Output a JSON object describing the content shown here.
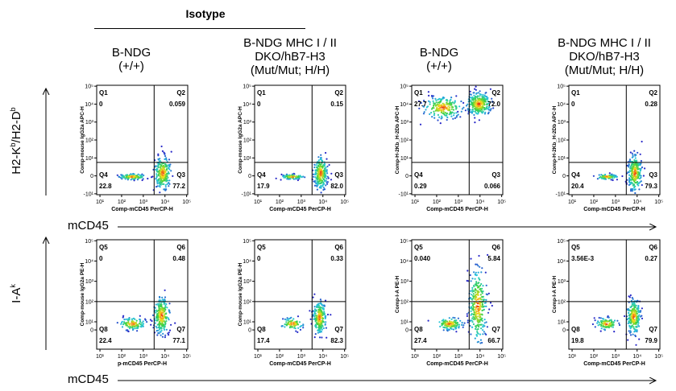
{
  "isotype_label": "Isotype",
  "column_headers": [
    {
      "lines": [
        "B-NDG",
        "(+/+)"
      ]
    },
    {
      "lines": [
        "B-NDG MHC I / II",
        "DKO/hB7-H3",
        "(Mut/Mut; H/H)"
      ]
    },
    {
      "lines": [
        "B-NDG",
        "(+/+)"
      ]
    },
    {
      "lines": [
        "B-NDG MHC I / II",
        "DKO/hB7-H3",
        "(Mut/Mut; H/H)"
      ]
    }
  ],
  "row_labels": {
    "top": {
      "base1": "H2-K",
      "sup1": "b",
      "mid": "/H2-D",
      "sup2": "b"
    },
    "bottom": {
      "base": "I-A",
      "sup": "k"
    }
  },
  "x_axis_title": "mCD45",
  "chart_data": [
    {
      "type": "scatter",
      "row": 0,
      "col": 0,
      "ylabel": "Comp-mouse IgG2a APC-H",
      "xlabel": "Comp-mCD45 PerCP-H",
      "x_ticks": [
        "10¹",
        "10²",
        "10³",
        "10⁴",
        "10⁵"
      ],
      "y_ticks": [
        "10⁵",
        "10⁴",
        "10³",
        "10²",
        "10¹",
        "0",
        "-10¹"
      ],
      "quadrants": {
        "tl": {
          "name": "Q1",
          "value": "0"
        },
        "tr": {
          "name": "Q2",
          "value": "0.059"
        },
        "bl": {
          "name": "Q4",
          "value": "22.8"
        },
        "br": {
          "name": "Q3",
          "value": "77.2"
        }
      },
      "populations": [
        {
          "x": 2.5,
          "y": -0.05,
          "sx": 0.3,
          "sy": 0.08,
          "n": 110
        },
        {
          "x": 3.9,
          "y": 0.15,
          "sx": 0.18,
          "sy": 0.45,
          "n": 230
        }
      ]
    },
    {
      "type": "scatter",
      "row": 0,
      "col": 1,
      "ylabel": "Comp-mouse IgG2a APC-H",
      "xlabel": "Comp-mCD45 PerCP-H",
      "x_ticks": [
        "10¹",
        "10²",
        "10³",
        "10⁴",
        "10⁵"
      ],
      "y_ticks": [
        "10⁵",
        "10⁴",
        "10³",
        "10²",
        "10¹",
        "0",
        "-10¹"
      ],
      "quadrants": {
        "tl": {
          "name": "Q1",
          "value": "0"
        },
        "tr": {
          "name": "Q2",
          "value": "0.15"
        },
        "bl": {
          "name": "Q4",
          "value": "17.9"
        },
        "br": {
          "name": "Q3",
          "value": "82.0"
        }
      },
      "populations": [
        {
          "x": 2.6,
          "y": -0.05,
          "sx": 0.25,
          "sy": 0.07,
          "n": 80
        },
        {
          "x": 3.9,
          "y": 0.15,
          "sx": 0.15,
          "sy": 0.45,
          "n": 230
        }
      ]
    },
    {
      "type": "scatter",
      "row": 0,
      "col": 2,
      "ylabel": "Comp-H-2Kb_H-2Db APC-H",
      "xlabel": "Comp-mCD45 PerCP-H",
      "x_ticks": [
        "10¹",
        "10²",
        "10³",
        "10⁴",
        "10⁵"
      ],
      "y_ticks": [
        "10⁵",
        "10⁴",
        "10³",
        "10²",
        "10¹",
        "0",
        "-10¹"
      ],
      "quadrants": {
        "tl": {
          "name": "Q1",
          "value": "27.7"
        },
        "tr": {
          "name": "Q2",
          "value": "72.0"
        },
        "bl": {
          "name": "Q4",
          "value": "0.29"
        },
        "br": {
          "name": "Q3",
          "value": "0.066"
        }
      },
      "populations": [
        {
          "x": 2.3,
          "y": 3.8,
          "sx": 0.45,
          "sy": 0.3,
          "n": 200
        },
        {
          "x": 3.95,
          "y": 4.0,
          "sx": 0.28,
          "sy": 0.32,
          "n": 260
        }
      ]
    },
    {
      "type": "scatter",
      "row": 0,
      "col": 3,
      "ylabel": "Comp-H-2Kb_H-2Db APC-H",
      "xlabel": "Comp-mCD45 PerCP-H",
      "x_ticks": [
        "10¹",
        "10²",
        "10³",
        "10⁴",
        "10⁵"
      ],
      "y_ticks": [
        "10⁵",
        "10⁴",
        "10³",
        "10²",
        "10¹",
        "0",
        "-10¹"
      ],
      "quadrants": {
        "tl": {
          "name": "Q1",
          "value": "0"
        },
        "tr": {
          "name": "Q2",
          "value": "0.28"
        },
        "bl": {
          "name": "Q4",
          "value": "20.4"
        },
        "br": {
          "name": "Q3",
          "value": "79.3"
        }
      },
      "populations": [
        {
          "x": 2.6,
          "y": -0.05,
          "sx": 0.25,
          "sy": 0.07,
          "n": 90
        },
        {
          "x": 3.9,
          "y": 0.15,
          "sx": 0.15,
          "sy": 0.5,
          "n": 240
        }
      ]
    },
    {
      "type": "scatter",
      "row": 1,
      "col": 0,
      "ylabel": "Comp-mouse IgG2a PE-H",
      "xlabel": "p-mCD45 PerCP-H",
      "x_ticks": [
        "10¹",
        "10²",
        "10³",
        "10⁴",
        "10⁵"
      ],
      "y_ticks": [
        "10⁵",
        "10⁴",
        "10³",
        "10²",
        "10¹",
        "0"
      ],
      "quadrants": {
        "tl": {
          "name": "Q5",
          "value": "0"
        },
        "tr": {
          "name": "Q6",
          "value": "0.48"
        },
        "bl": {
          "name": "Q8",
          "value": "22.4"
        },
        "br": {
          "name": "Q7",
          "value": "77.1"
        }
      },
      "populations": [
        {
          "x": 2.5,
          "y": 0.9,
          "sx": 0.3,
          "sy": 0.15,
          "n": 110
        },
        {
          "x": 3.85,
          "y": 1.3,
          "sx": 0.18,
          "sy": 0.45,
          "n": 230
        }
      ]
    },
    {
      "type": "scatter",
      "row": 1,
      "col": 1,
      "ylabel": "Comp-mouse IgG2a PE-H",
      "xlabel": "Comp-mCD45 PerCP-H",
      "x_ticks": [
        "10¹",
        "10²",
        "10³",
        "10⁴",
        "10⁵"
      ],
      "y_ticks": [
        "10⁵",
        "10⁴",
        "10³",
        "10²",
        "10¹",
        "0"
      ],
      "quadrants": {
        "tl": {
          "name": "Q5",
          "value": "0"
        },
        "tr": {
          "name": "Q6",
          "value": "0.33"
        },
        "bl": {
          "name": "Q8",
          "value": "17.4"
        },
        "br": {
          "name": "Q7",
          "value": "82.3"
        }
      },
      "populations": [
        {
          "x": 2.6,
          "y": 0.9,
          "sx": 0.25,
          "sy": 0.15,
          "n": 80
        },
        {
          "x": 3.85,
          "y": 1.2,
          "sx": 0.15,
          "sy": 0.4,
          "n": 230
        }
      ]
    },
    {
      "type": "scatter",
      "row": 1,
      "col": 2,
      "ylabel": "Comp-I-A PE-H",
      "xlabel": "Comp-mCD45 PerCP-H",
      "x_ticks": [
        "10¹",
        "10²",
        "10³",
        "10⁴",
        "10⁵"
      ],
      "y_ticks": [
        "10⁵",
        "10⁴",
        "10³",
        "10²",
        "10¹",
        "0"
      ],
      "quadrants": {
        "tl": {
          "name": "Q5",
          "value": "0.040"
        },
        "tr": {
          "name": "Q6",
          "value": "5.84"
        },
        "bl": {
          "name": "Q8",
          "value": "27.4"
        },
        "br": {
          "name": "Q7",
          "value": "66.7"
        }
      },
      "populations": [
        {
          "x": 2.6,
          "y": 0.9,
          "sx": 0.3,
          "sy": 0.15,
          "n": 120
        },
        {
          "x": 3.9,
          "y": 1.8,
          "sx": 0.2,
          "sy": 0.9,
          "n": 280
        }
      ]
    },
    {
      "type": "scatter",
      "row": 1,
      "col": 3,
      "ylabel": "Comp-I-A PE-H",
      "xlabel": "Comp-mCD45 PerCP-H",
      "x_ticks": [
        "10¹",
        "10²",
        "10³",
        "10⁴",
        "10⁵"
      ],
      "y_ticks": [
        "10⁵",
        "10⁴",
        "10³",
        "10²",
        "10¹",
        "0"
      ],
      "quadrants": {
        "tl": {
          "name": "Q5",
          "value": "3.56E-3"
        },
        "tr": {
          "name": "Q6",
          "value": "0.27"
        },
        "bl": {
          "name": "Q8",
          "value": "19.8"
        },
        "br": {
          "name": "Q7",
          "value": "79.9"
        }
      },
      "populations": [
        {
          "x": 2.6,
          "y": 0.9,
          "sx": 0.25,
          "sy": 0.15,
          "n": 90
        },
        {
          "x": 3.85,
          "y": 1.25,
          "sx": 0.15,
          "sy": 0.42,
          "n": 240
        }
      ]
    }
  ]
}
